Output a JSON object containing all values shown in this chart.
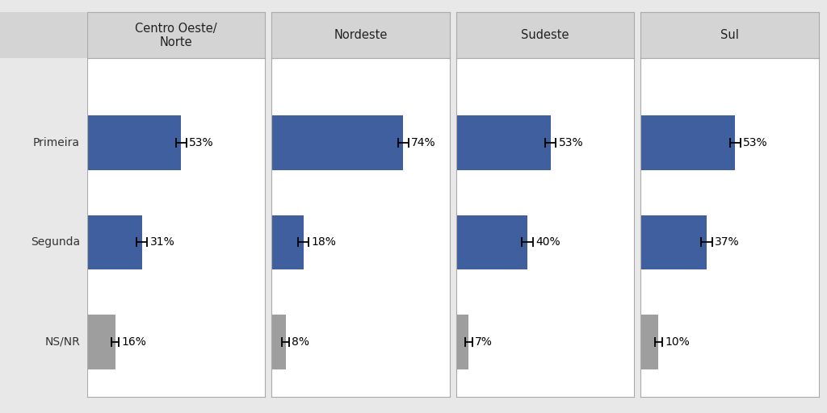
{
  "regions": [
    "Centro Oeste/\nNorte",
    "Nordeste",
    "Sudeste",
    "Sul"
  ],
  "categories": [
    "Primeira",
    "Segunda",
    "NS/NR"
  ],
  "values": {
    "Centro Oeste/\nNorte": [
      53,
      31,
      16
    ],
    "Nordeste": [
      74,
      18,
      8
    ],
    "Sudeste": [
      53,
      40,
      7
    ],
    "Sul": [
      53,
      37,
      10
    ]
  },
  "errors": {
    "Centro Oeste/\nNorte": [
      3,
      3,
      2
    ],
    "Nordeste": [
      3,
      3,
      2
    ],
    "Sudeste": [
      3,
      3,
      2
    ],
    "Sul": [
      3,
      3,
      2
    ]
  },
  "bar_colors": {
    "Primeira": "#3F5F9E",
    "Segunda": "#3F5F9E",
    "NS/NR": "#9E9E9E"
  },
  "background_color": "#FFFFFF",
  "panel_header_color": "#D4D4D4",
  "label_fontsize": 10,
  "header_fontsize": 10.5,
  "pct_fontsize": 10,
  "bar_height": 0.55,
  "outer_background": "#E8E8E8"
}
